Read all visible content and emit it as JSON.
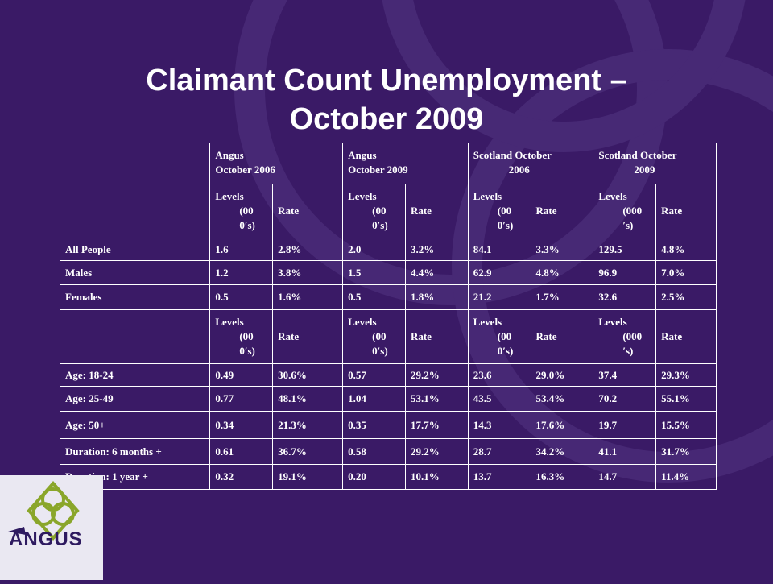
{
  "title": {
    "line1": "Claimant Count Unemployment –",
    "line2": "October 2009"
  },
  "header": {
    "angus_2006": [
      "Angus",
      "October 2006"
    ],
    "angus_2009": [
      "Angus",
      "October 2009"
    ],
    "scotland_2006": [
      "Scotland October",
      "2006"
    ],
    "scotland_2009": [
      "Scotland   October",
      "2009"
    ]
  },
  "subheader": {
    "levels_a": [
      "Levels",
      "(00",
      "0′s)"
    ],
    "levels_b": [
      "Levels",
      "(000",
      "′s)"
    ],
    "rate": "Rate"
  },
  "rows_group1": [
    {
      "label": "All People",
      "values": [
        "1.6",
        "2.8%",
        "2.0",
        "3.2%",
        "84.1",
        "3.3%",
        "129.5",
        "4.8%"
      ]
    },
    {
      "label": "Males",
      "values": [
        "1.2",
        "3.8%",
        "1.5",
        "4.4%",
        "62.9",
        "4.8%",
        "96.9",
        "7.0%"
      ]
    },
    {
      "label": "Females",
      "values": [
        "0.5",
        "1.6%",
        "0.5",
        "1.8%",
        "21.2",
        "1.7%",
        "32.6",
        "2.5%"
      ]
    }
  ],
  "rows_group2": [
    {
      "label": "Age: 18-24",
      "values": [
        "0.49",
        "30.6%",
        "0.57",
        "29.2%",
        "23.6",
        "29.0%",
        "37.4",
        "29.3%"
      ]
    },
    {
      "label": "Age: 25-49",
      "values": [
        "0.77",
        "48.1%",
        "1.04",
        "53.1%",
        "43.5",
        "53.4%",
        "70.2",
        "55.1%"
      ]
    },
    {
      "label": "Age: 50+",
      "values": [
        "0.34",
        "21.3%",
        "0.35",
        "17.7%",
        "14.3",
        "17.6%",
        "19.7",
        "15.5%"
      ]
    },
    {
      "label": "Duration: 6 months +",
      "values": [
        "0.61",
        "36.7%",
        "0.58",
        "29.2%",
        "28.7",
        "34.2%",
        "41.1",
        "31.7%"
      ]
    },
    {
      "label": "Duration: 1 year +",
      "values": [
        "0.32",
        "19.1%",
        "0.20",
        "10.1%",
        "13.7",
        "16.3%",
        "14.7",
        "11.4%"
      ]
    }
  ],
  "logo": {
    "text": "ANGUS"
  },
  "colors": {
    "background": "#3a1a66",
    "text": "#ffffff",
    "logo_green": "#8aa62a"
  }
}
